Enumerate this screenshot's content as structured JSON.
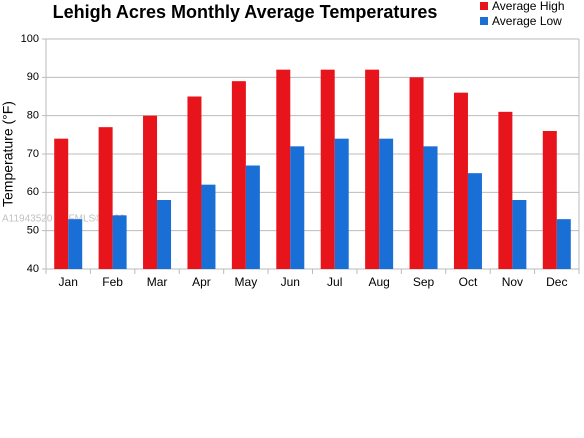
{
  "chart_data": {
    "type": "bar",
    "title": "Lehigh Acres Monthly Average Temperatures",
    "y_label": "Temperature (°F)",
    "watermark": "A11943520 SEFMLS©2026",
    "categories": [
      "Jan",
      "Feb",
      "Mar",
      "Apr",
      "May",
      "Jun",
      "Jul",
      "Aug",
      "Sep",
      "Oct",
      "Nov",
      "Dec"
    ],
    "series": [
      {
        "name": "Average High",
        "color": "#e8141c",
        "values": [
          74,
          77,
          80,
          85,
          89,
          92,
          92,
          92,
          90,
          86,
          81,
          76
        ]
      },
      {
        "name": "Average Low",
        "color": "#1a6fd6",
        "values": [
          53,
          54,
          58,
          62,
          67,
          72,
          74,
          74,
          72,
          65,
          58,
          53
        ]
      }
    ],
    "ylim": [
      40,
      100
    ],
    "yticks": [
      40,
      50,
      60,
      70,
      80,
      90,
      100
    ],
    "grid": true,
    "legend": "top-right"
  }
}
